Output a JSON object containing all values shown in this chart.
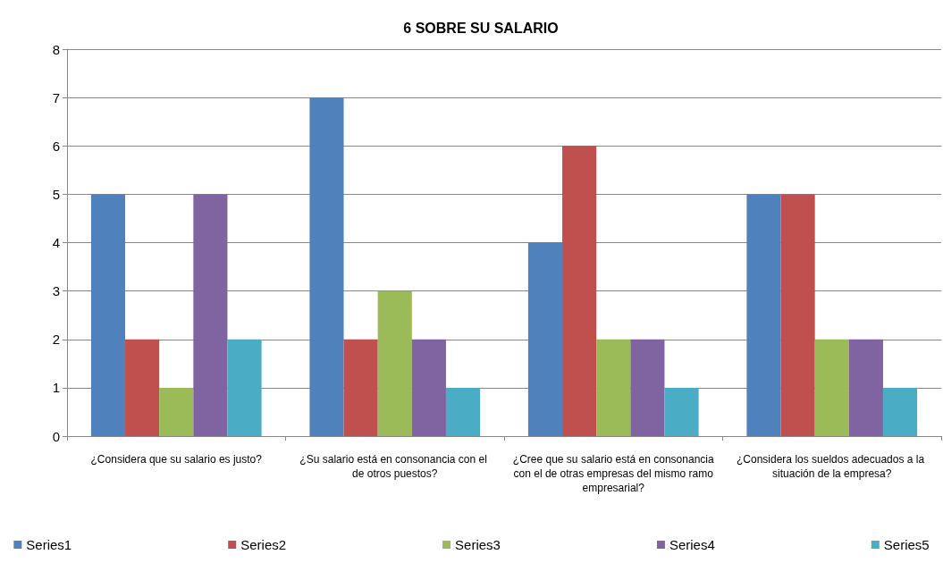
{
  "chart_data": {
    "type": "bar",
    "title": "6 SOBRE SU SALARIO",
    "categories": [
      "¿Considera que su salario es justo?",
      "¿Su salario está en consonancia con el de otros puestos?",
      "¿Cree que su salario está en consonancia con el de otras empresas del mismo ramo empresarial?",
      "¿Considera los sueldos adecuados a la situación de la empresa?"
    ],
    "series": [
      {
        "name": "Series1",
        "color": "#4f81bd",
        "values": [
          5,
          7,
          4,
          5
        ]
      },
      {
        "name": "Series2",
        "color": "#c0504d",
        "values": [
          2,
          2,
          6,
          5
        ]
      },
      {
        "name": "Series3",
        "color": "#9bbb59",
        "values": [
          1,
          3,
          2,
          2
        ]
      },
      {
        "name": "Series4",
        "color": "#8064a2",
        "values": [
          5,
          2,
          2,
          2
        ]
      },
      {
        "name": "Series5",
        "color": "#4bacc6",
        "values": [
          2,
          1,
          1,
          1
        ]
      }
    ],
    "ylim": [
      0,
      8
    ],
    "yticks": [
      0,
      1,
      2,
      3,
      4,
      5,
      6,
      7,
      8
    ],
    "grid": "y",
    "legend": "bottom"
  }
}
